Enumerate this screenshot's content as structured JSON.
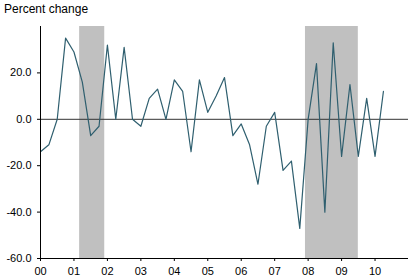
{
  "chart_data": {
    "type": "line",
    "title": "Percent change",
    "x": [
      2000,
      2000.25,
      2000.5,
      2000.75,
      2001,
      2001.25,
      2001.5,
      2001.75,
      2002,
      2002.25,
      2002.5,
      2002.75,
      2003,
      2003.25,
      2003.5,
      2003.75,
      2004,
      2004.25,
      2004.5,
      2004.75,
      2005,
      2005.25,
      2005.5,
      2005.75,
      2006,
      2006.25,
      2006.5,
      2006.75,
      2007,
      2007.25,
      2007.5,
      2007.75,
      2008,
      2008.25,
      2008.5,
      2008.75,
      2009,
      2009.25,
      2009.5,
      2009.75,
      2010,
      2010.25
    ],
    "series": [
      {
        "name": "Percent change",
        "color": "#2f5f6f",
        "values": [
          -14,
          -11,
          0,
          35,
          29,
          16,
          -7,
          -3,
          32,
          0,
          31,
          0,
          -3,
          9,
          13,
          0,
          17,
          12,
          -14,
          17,
          3,
          10,
          18,
          -7,
          -2,
          -11,
          -28,
          -3,
          3,
          -22,
          -18,
          -47,
          0,
          24,
          -40,
          33,
          -16,
          15,
          -16,
          9,
          -16,
          12
        ]
      }
    ],
    "recessions": [
      {
        "start": 2001.17,
        "end": 2001.92,
        "color": "#c0c0c0"
      },
      {
        "start": 2007.92,
        "end": 2009.5,
        "color": "#c0c0c0"
      }
    ],
    "reference_line": 0,
    "xlim": [
      2000,
      2011
    ],
    "xticks": [
      {
        "value": 2000,
        "label": "00"
      },
      {
        "value": 2001,
        "label": "01"
      },
      {
        "value": 2002,
        "label": "02"
      },
      {
        "value": 2003,
        "label": "03"
      },
      {
        "value": 2004,
        "label": "04"
      },
      {
        "value": 2005,
        "label": "05"
      },
      {
        "value": 2006,
        "label": "06"
      },
      {
        "value": 2007,
        "label": "07"
      },
      {
        "value": 2008,
        "label": "08"
      },
      {
        "value": 2009,
        "label": "09"
      },
      {
        "value": 2010,
        "label": "10"
      }
    ],
    "ylim": [
      -60,
      40
    ],
    "yticks": [
      {
        "value": -60,
        "label": "-60.0"
      },
      {
        "value": -40,
        "label": "-40.0"
      },
      {
        "value": -20,
        "label": "-20.0"
      },
      {
        "value": 0,
        "label": "0.0"
      },
      {
        "value": 20,
        "label": "20.0"
      }
    ],
    "grid": false
  }
}
